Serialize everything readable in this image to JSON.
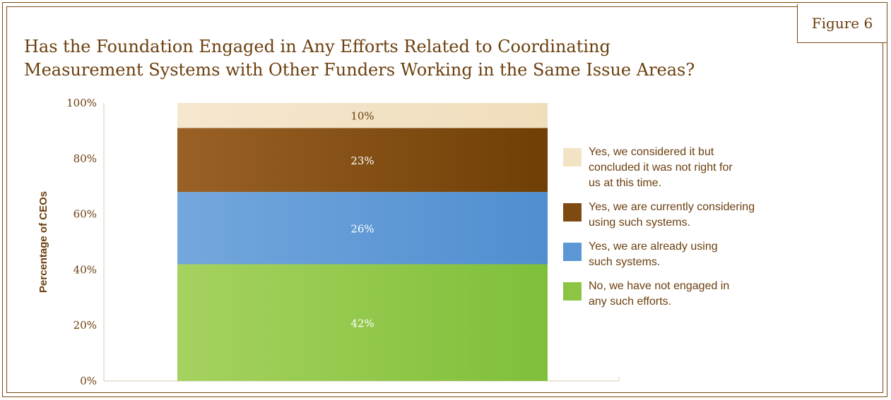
{
  "figure_label": "Figure 6",
  "title_lines": [
    "Has the Foundation Engaged in Any Efforts Related to Coordinating",
    "Measurement Systems with Other Funders Working in the Same Issue Areas?"
  ],
  "colors": {
    "frame": "#7a4a12",
    "text": "#6b3f0e",
    "green": "#8cc543",
    "blue": "#5b97d4",
    "brown": "#7f4a12",
    "cream": "#f3e3c5"
  },
  "chart_data": {
    "type": "bar",
    "stacked": true,
    "ylabel": "Percentage of CEOs",
    "ylim": [
      0,
      100
    ],
    "yticks": [
      "0%",
      "20%",
      "40%",
      "60%",
      "80%",
      "100%"
    ],
    "grid": false,
    "legend_position": "right",
    "series": [
      {
        "name": "No, we have not engaged in any such efforts.",
        "value": 42,
        "label": "42%",
        "color": "#8cc543",
        "label_color": "#ffffff"
      },
      {
        "name": "Yes, we are already using such systems.",
        "value": 26,
        "label": "26%",
        "color": "#5b97d4",
        "label_color": "#ffffff"
      },
      {
        "name": "Yes, we are currently considering using such systems.",
        "value": 23,
        "label": "23%",
        "color": "#7f4a12",
        "label_color": "#ffffff"
      },
      {
        "name": "Yes, we considered it but concluded it was not right for us at this time.",
        "value": 10,
        "label": "10%",
        "color": "#f3e3c5",
        "label_color": "#6b3f0e"
      }
    ]
  },
  "legend": [
    {
      "lines": [
        "Yes, we considered it but",
        "concluded it was not right for",
        "us at this time."
      ],
      "color": "#f3e3c5"
    },
    {
      "lines": [
        "Yes, we are currently considering",
        "using such systems."
      ],
      "color": "#7f4a12"
    },
    {
      "lines": [
        "Yes, we are already using",
        "such systems."
      ],
      "color": "#5b97d4"
    },
    {
      "lines": [
        "No, we have not engaged in",
        "any such efforts."
      ],
      "color": "#8cc543"
    }
  ]
}
